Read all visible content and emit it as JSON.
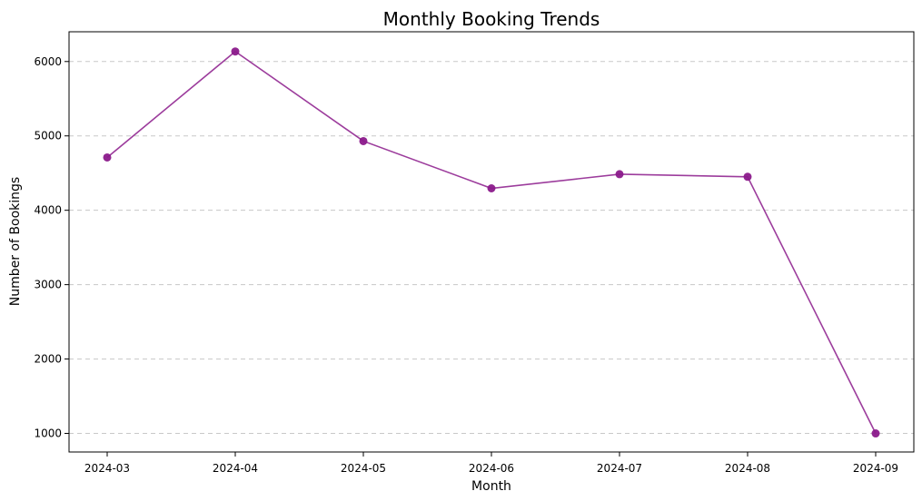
{
  "chart_data": {
    "type": "line",
    "title": "Monthly Booking Trends",
    "xlabel": "Month",
    "ylabel": "Number of Bookings",
    "categories": [
      "2024-03",
      "2024-04",
      "2024-05",
      "2024-06",
      "2024-07",
      "2024-08",
      "2024-09"
    ],
    "series": [
      {
        "values": [
          4710,
          6135,
          4930,
          4295,
          4485,
          4450,
          1000
        ],
        "color": "#8b1a8b"
      }
    ],
    "yticks": [
      1000,
      2000,
      3000,
      4000,
      5000,
      6000
    ],
    "ylim": [
      750,
      6400
    ],
    "grid": "y-dashed",
    "legend": "none"
  }
}
